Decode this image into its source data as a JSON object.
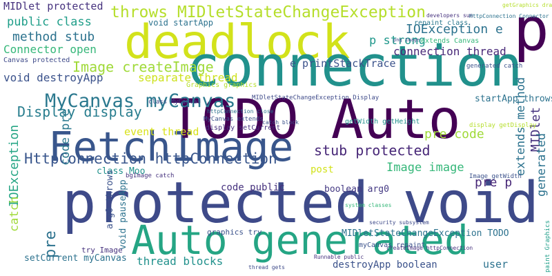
{
  "words": [
    {
      "text": "deadlock"
    },
    {
      "text": "protected void"
    },
    {
      "text": "FetchImage"
    },
    {
      "text": "TODO Auto"
    },
    {
      "text": "connection"
    },
    {
      "text": "Auto generated"
    },
    {
      "text": "p"
    },
    {
      "text": "throws MIDletStateChangeException"
    },
    {
      "text": "MIDlet protected"
    },
    {
      "text": "public class"
    },
    {
      "text": "method stub"
    },
    {
      "text": "Connector open"
    },
    {
      "text": "Canvas protected"
    },
    {
      "text": "void destroyApp"
    },
    {
      "text": "Image createImage"
    },
    {
      "text": "MyCanvas myCanvas"
    },
    {
      "text": "Display display"
    },
    {
      "text": "separate thread"
    },
    {
      "text": "IOException e"
    },
    {
      "text": "p strong"
    },
    {
      "text": "connection thread"
    },
    {
      "text": "e printStackTrace"
    },
    {
      "text": "void startApp"
    },
    {
      "text": "repaint class"
    },
    {
      "text": "extends Canvas"
    },
    {
      "text": "HttpConnection httpConnection"
    },
    {
      "text": "stub protected"
    },
    {
      "text": "pre code"
    },
    {
      "text": "Image image"
    },
    {
      "text": "pre p"
    },
    {
      "text": "event thread"
    },
    {
      "text": "code public"
    },
    {
      "text": "boolean arg0"
    },
    {
      "text": "post"
    },
    {
      "text": "class Moo"
    },
    {
      "text": "MIDlet"
    },
    {
      "text": "extends method"
    },
    {
      "text": "generated"
    },
    {
      "text": "IOException"
    },
    {
      "text": "catch"
    },
    {
      "text": "code pre"
    },
    {
      "text": "MIDletStateChangeException TODO"
    },
    {
      "text": "graphics try"
    },
    {
      "text": "try Image"
    },
    {
      "text": "thread blocks"
    },
    {
      "text": "destroyApp boolean"
    },
    {
      "text": "user"
    },
    {
      "text": "setCurrent myCanvas"
    },
    {
      "text": "void pauseApp"
    },
    {
      "text": "arg0 throws"
    },
    {
      "text": "pre"
    },
    {
      "text": "myCanvas repaint"
    },
    {
      "text": "startApp throws"
    },
    {
      "text": "getWidth getHeight"
    },
    {
      "text": "class MyCanvas"
    },
    {
      "text": "display setCurrent"
    },
    {
      "text": "MyCanvas extends"
    },
    {
      "text": "httpConnection close"
    },
    {
      "text": "Graphics graphics"
    },
    {
      "text": "MIDletStateChangeException Display"
    },
    {
      "text": "developers sun"
    },
    {
      "text": "HttpConnection Connector"
    },
    {
      "text": "getGraphics drawImage"
    },
    {
      "text": "png Image"
    },
    {
      "text": "generated catch"
    },
    {
      "text": "bgImage catch"
    },
    {
      "text": "catch block"
    },
    {
      "text": "display getDisplay"
    },
    {
      "text": "createImage httpConnection"
    },
    {
      "text": "paint Graphics"
    },
    {
      "text": "Image getWidth"
    },
    {
      "text": "system classes"
    },
    {
      "text": "security subsystem"
    },
    {
      "text": "Runnable public"
    },
    {
      "text": "thread gets"
    }
  ]
}
